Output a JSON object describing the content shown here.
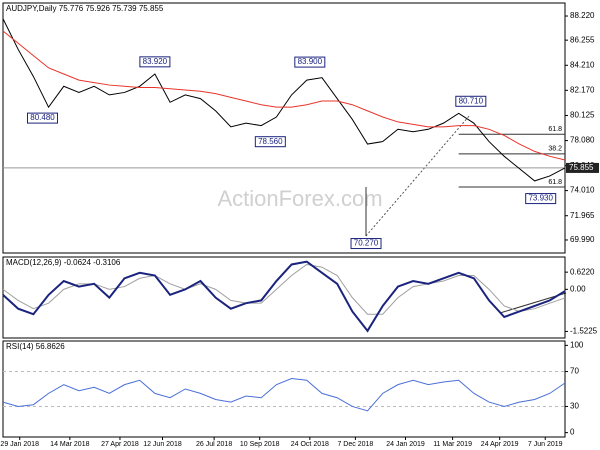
{
  "watermark": "ActionForex.com",
  "chart_data": [
    {
      "type": "line",
      "title": "AUDJPY,Daily 75.776 75.926 75.739 75.855",
      "x": [
        0,
        1,
        2,
        3,
        4,
        5,
        6,
        7,
        8,
        9,
        10,
        11,
        12,
        13,
        14,
        15,
        16,
        17,
        18,
        19,
        20,
        21,
        22,
        23,
        24,
        25,
        26,
        27,
        28,
        29,
        30,
        31,
        32,
        33,
        34,
        35,
        36,
        37
      ],
      "xlim": [
        0,
        37
      ],
      "ylim": [
        68.93,
        89.28
      ],
      "yticks": [
        {
          "value": 88.22,
          "label": "88.220"
        },
        {
          "value": 86.255,
          "label": "86.255"
        },
        {
          "value": 84.21,
          "label": "84.210"
        },
        {
          "value": 82.17,
          "label": "82.170"
        },
        {
          "value": 80.125,
          "label": "80.125"
        },
        {
          "value": 78.08,
          "label": "78.080"
        },
        {
          "value": 76.04,
          "label": "76.040"
        },
        {
          "value": 74.01,
          "label": "74.010"
        },
        {
          "value": 71.965,
          "label": "71.965"
        },
        {
          "value": 69.99,
          "label": "69.990"
        }
      ],
      "series": [
        {
          "color": "#000000",
          "width": 1,
          "values": [
            88.0,
            85.5,
            83.3,
            80.8,
            82.5,
            82.0,
            82.5,
            81.8,
            82.0,
            82.5,
            83.5,
            81.2,
            81.8,
            81.5,
            80.5,
            79.2,
            79.5,
            79.3,
            80.0,
            81.8,
            83.0,
            83.2,
            81.5,
            79.8,
            77.8,
            78.0,
            79.0,
            78.8,
            79.0,
            79.5,
            80.3,
            79.5,
            78.0,
            76.8,
            75.8,
            74.8,
            75.2,
            75.855
          ]
        },
        {
          "color": "#e8342a",
          "width": 1,
          "values": [
            87.0,
            86.0,
            85.0,
            84.0,
            83.5,
            83.0,
            82.8,
            82.6,
            82.5,
            82.4,
            82.4,
            82.3,
            82.2,
            82.1,
            81.9,
            81.6,
            81.3,
            81.0,
            80.8,
            80.8,
            81.0,
            81.3,
            81.3,
            81.0,
            80.5,
            80.0,
            79.6,
            79.4,
            79.2,
            79.2,
            79.3,
            79.3,
            79.0,
            78.5,
            77.8,
            77.2,
            76.8,
            76.5
          ]
        }
      ],
      "last": {
        "value": 75.855,
        "label": "75.855"
      },
      "annotations": [
        {
          "value": 83.92,
          "label": "83.920",
          "x": 10,
          "side": "above"
        },
        {
          "value": 80.48,
          "label": "80.480",
          "x": 2.6,
          "side": "below"
        },
        {
          "value": 78.56,
          "label": "78.560",
          "x": 17.6,
          "side": "below"
        },
        {
          "value": 83.9,
          "label": "83.900",
          "x": 20.2,
          "side": "above"
        },
        {
          "value": 70.27,
          "label": "70.270",
          "x": 23.9,
          "side": "below"
        },
        {
          "value": 80.71,
          "label": "80.710",
          "x": 30.8,
          "side": "above"
        },
        {
          "value": 73.93,
          "label": "73.930",
          "x": 35.4,
          "side": "below"
        }
      ],
      "fibonacci": [
        {
          "ratio": 61.8,
          "price": 78.6
        },
        {
          "ratio": 38.2,
          "price": 77.0
        },
        {
          "ratio": 61.8,
          "price": 74.3
        }
      ]
    },
    {
      "type": "line",
      "title": "MACD(12,26,9) -0.0624 -0.3106",
      "x": [
        0,
        1,
        2,
        3,
        4,
        5,
        6,
        7,
        8,
        9,
        10,
        11,
        12,
        13,
        14,
        15,
        16,
        17,
        18,
        19,
        20,
        21,
        22,
        23,
        24,
        25,
        26,
        27,
        28,
        29,
        30,
        31,
        32,
        33,
        34,
        35,
        36,
        37
      ],
      "xlim": [
        0,
        37
      ],
      "ylim": [
        -1.76,
        1.17
      ],
      "yticks": [
        {
          "value": 0.622,
          "label": "0.6220"
        },
        {
          "value": 0,
          "label": "0.00"
        },
        -1.5225
      ],
      "series": [
        {
          "color": "#a0a0a0",
          "width": 1,
          "values": [
            0.0,
            -0.4,
            -0.7,
            -0.5,
            0.0,
            0.2,
            0.2,
            0.0,
            0.1,
            0.4,
            0.5,
            0.2,
            0.0,
            0.2,
            0.0,
            -0.4,
            -0.5,
            -0.5,
            0.0,
            0.5,
            0.9,
            0.8,
            0.5,
            -0.3,
            -0.9,
            -0.9,
            -0.3,
            0.1,
            0.2,
            0.3,
            0.5,
            0.5,
            0.0,
            -0.6,
            -0.8,
            -0.7,
            -0.5,
            -0.3106
          ]
        },
        {
          "color": "#1a237e",
          "width": 2,
          "values": [
            -0.2,
            -0.7,
            -0.9,
            -0.2,
            0.3,
            0.1,
            0.2,
            -0.3,
            0.4,
            0.6,
            0.5,
            -0.2,
            0.0,
            0.3,
            -0.3,
            -0.7,
            -0.5,
            -0.4,
            0.3,
            0.9,
            1.0,
            0.6,
            0.2,
            -0.8,
            -1.5,
            -0.6,
            0.1,
            0.3,
            0.2,
            0.4,
            0.6,
            0.4,
            -0.4,
            -1.0,
            -0.8,
            -0.6,
            -0.4,
            -0.0624
          ]
        }
      ]
    },
    {
      "type": "line",
      "title": "RSI(14) 56.8626",
      "x": [
        0,
        1,
        2,
        3,
        4,
        5,
        6,
        7,
        8,
        9,
        10,
        11,
        12,
        13,
        14,
        15,
        16,
        17,
        18,
        19,
        20,
        21,
        22,
        23,
        24,
        25,
        26,
        27,
        28,
        29,
        30,
        31,
        32,
        33,
        34,
        35,
        36,
        37
      ],
      "xlim": [
        0,
        37
      ],
      "ylim": [
        -5,
        105
      ],
      "yticks": [
        100,
        70,
        30,
        0
      ],
      "levels": [
        70,
        30
      ],
      "series": [
        {
          "color": "#4a6fd8",
          "width": 1,
          "values": [
            35,
            30,
            32,
            45,
            55,
            48,
            52,
            45,
            55,
            60,
            45,
            40,
            50,
            45,
            38,
            35,
            42,
            40,
            55,
            62,
            60,
            45,
            40,
            30,
            25,
            45,
            55,
            60,
            55,
            58,
            60,
            45,
            35,
            30,
            35,
            38,
            45,
            56.8626
          ]
        }
      ],
      "xticks": [
        {
          "value": 1.1,
          "label": "29 Jan 2018"
        },
        {
          "value": 4.4,
          "label": "14 Mar 2018"
        },
        {
          "value": 7.7,
          "label": "27 Apr 2018"
        },
        {
          "value": 10.5,
          "label": "12 Jun 2018"
        },
        {
          "value": 13.9,
          "label": "26 Jul 2018"
        },
        {
          "value": 16.9,
          "label": "10 Sep 2018"
        },
        {
          "value": 20.2,
          "label": "24 Oct 2018"
        },
        {
          "value": 23.2,
          "label": "7 Dec 2018"
        },
        {
          "value": 26.5,
          "label": "24 Jan 2019"
        },
        {
          "value": 29.6,
          "label": "11 Mar 2019"
        },
        {
          "value": 32.7,
          "label": "24 Apr 2019"
        },
        {
          "value": 35.7,
          "label": "7 Jun 2019"
        }
      ]
    }
  ]
}
